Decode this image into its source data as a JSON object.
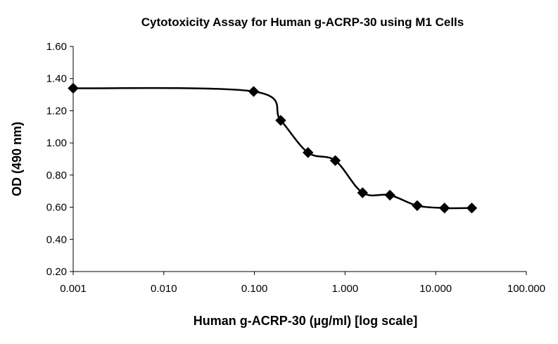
{
  "chart_data": {
    "type": "line",
    "title": "Cytotoxicity Assay for Human g-ACRP-30 using M1 Cells",
    "xlabel": "Human g-ACRP-30 (µg/ml) [log scale]",
    "ylabel": "OD (490 nm)",
    "x_scale": "log",
    "xlim": [
      0.001,
      100
    ],
    "ylim": [
      0.2,
      1.6
    ],
    "x_ticks": [
      0.001,
      0.01,
      0.1,
      1,
      10,
      100
    ],
    "x_tick_labels": [
      "0.001",
      "0.010",
      "0.100",
      "1.000",
      "10.000",
      "100.000"
    ],
    "y_ticks": [
      0.2,
      0.4,
      0.6,
      0.8,
      1.0,
      1.2,
      1.4,
      1.6
    ],
    "y_tick_labels": [
      "0.20",
      "0.40",
      "0.60",
      "0.80",
      "1.00",
      "1.20",
      "1.40",
      "1.60"
    ],
    "grid": false,
    "legend": "none",
    "marker": "diamond",
    "series": [
      {
        "x": [
          0.001,
          0.098,
          0.195,
          0.39,
          0.78,
          1.56,
          3.125,
          6.25,
          12.5,
          25
        ],
        "y": [
          1.34,
          1.32,
          1.14,
          0.94,
          0.89,
          0.69,
          0.675,
          0.61,
          0.595,
          0.595
        ],
        "color": "#000000"
      }
    ]
  }
}
